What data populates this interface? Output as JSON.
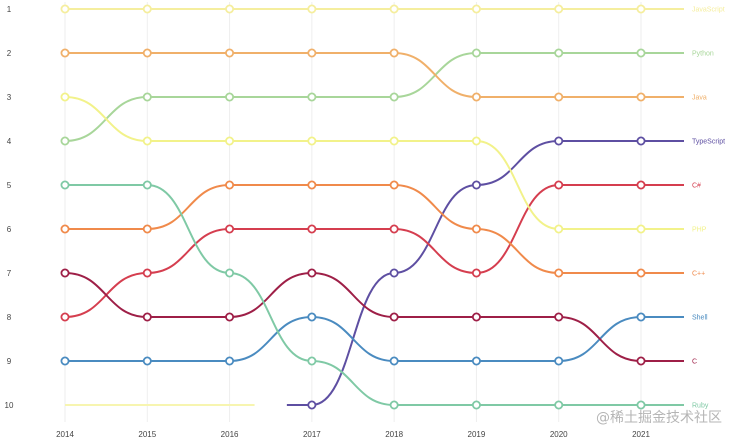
{
  "watermark": "@稀土掘金技术社区",
  "chart_data": {
    "type": "line",
    "subtype": "bump",
    "title": "",
    "xlabel": "",
    "ylabel": "",
    "x": [
      "2014",
      "2015",
      "2016",
      "2017",
      "2018",
      "2019",
      "2020",
      "2021"
    ],
    "ranks": [
      "1",
      "2",
      "3",
      "4",
      "5",
      "6",
      "7",
      "8",
      "9",
      "10"
    ],
    "ylim": [
      10,
      1
    ],
    "y_inverted": true,
    "grid": "vertical",
    "legend": "end-labels-right",
    "series": [
      {
        "name": "JavaScript",
        "color": "#f5ee9e",
        "ranks": [
          1,
          1,
          1,
          1,
          1,
          1,
          1,
          1
        ]
      },
      {
        "name": "Python",
        "color": "#a8d69a",
        "ranks": [
          4,
          3,
          3,
          3,
          3,
          2,
          2,
          2
        ]
      },
      {
        "name": "Java",
        "color": "#f0b06a",
        "ranks": [
          2,
          2,
          2,
          2,
          2,
          3,
          3,
          3
        ]
      },
      {
        "name": "TypeScript",
        "color": "#5e4fa2",
        "ranks": [
          null,
          null,
          null,
          10,
          7,
          5,
          4,
          4
        ]
      },
      {
        "name": "C#",
        "color": "#d53e4f",
        "ranks": [
          8,
          7,
          6,
          6,
          6,
          7,
          5,
          5
        ]
      },
      {
        "name": "PHP",
        "color": "#f2f28a",
        "ranks": [
          3,
          4,
          4,
          4,
          4,
          4,
          6,
          6
        ]
      },
      {
        "name": "C++",
        "color": "#f08a4b",
        "ranks": [
          6,
          6,
          5,
          5,
          5,
          6,
          7,
          7
        ]
      },
      {
        "name": "Shell",
        "color": "#4a8bc0",
        "ranks": [
          9,
          9,
          9,
          8,
          9,
          9,
          9,
          8
        ]
      },
      {
        "name": "C",
        "color": "#9e1f47",
        "ranks": [
          7,
          8,
          8,
          7,
          8,
          8,
          8,
          9
        ]
      },
      {
        "name": "Ruby",
        "color": "#7fc9a5",
        "ranks": [
          5,
          5,
          7,
          9,
          10,
          10,
          10,
          10
        ]
      }
    ],
    "faded_series": [
      {
        "color": "#f7f5b0",
        "ranks": [
          10,
          10,
          10
        ]
      }
    ]
  }
}
